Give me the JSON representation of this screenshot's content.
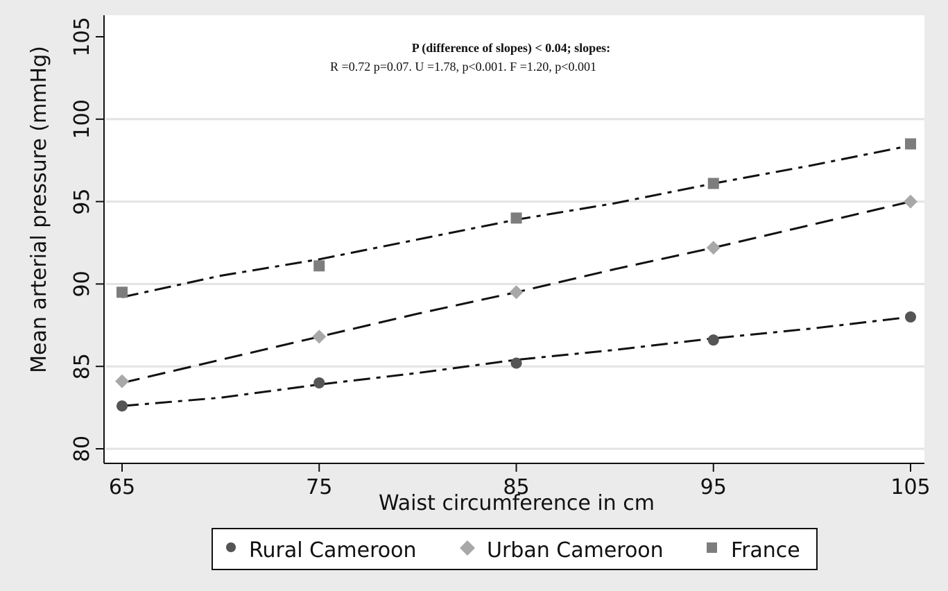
{
  "chart_data": {
    "type": "line",
    "xlabel": "Waist circumference in cm",
    "ylabel": "Mean arterial pressure (mmHg)",
    "xlim": [
      64,
      106
    ],
    "ylim": [
      79,
      105.5
    ],
    "x_ticks": [
      65,
      75,
      85,
      95,
      105
    ],
    "y_ticks": [
      80,
      85,
      90,
      95,
      100,
      105
    ],
    "grid": "horizontal",
    "legend_position": "bottom",
    "annotations": [
      "P (difference of slopes) < 0.04; slopes:",
      "R =0.72 p=0.07.  U =1.78, p<0.001.   F =1.20, p<0.001"
    ],
    "x": [
      65,
      75,
      85,
      95,
      105
    ],
    "series": [
      {
        "name": "Rural Cameroon",
        "marker": "circle",
        "color": "#555555",
        "line_style": "dash-dot",
        "values": [
          82.6,
          84.0,
          85.2,
          86.6,
          88.0
        ],
        "fit": [
          [
            65,
            82.6
          ],
          [
            70,
            83.1
          ],
          [
            75,
            83.9
          ],
          [
            80,
            84.6
          ],
          [
            85,
            85.4
          ],
          [
            90,
            86.0
          ],
          [
            95,
            86.7
          ],
          [
            100,
            87.3
          ],
          [
            105,
            88.0
          ]
        ]
      },
      {
        "name": "Urban Cameroon",
        "marker": "diamond",
        "color": "#a8a8a8",
        "line_style": "long-dash",
        "values": [
          84.1,
          86.8,
          89.5,
          92.2,
          95.0
        ],
        "fit": [
          [
            65,
            84.0
          ],
          [
            70,
            85.4
          ],
          [
            75,
            86.8
          ],
          [
            80,
            88.2
          ],
          [
            85,
            89.5
          ],
          [
            90,
            90.9
          ],
          [
            95,
            92.2
          ],
          [
            100,
            93.6
          ],
          [
            105,
            95.0
          ]
        ]
      },
      {
        "name": "France",
        "marker": "square",
        "color": "#7d7d7d",
        "line_style": "dash-dot",
        "values": [
          89.5,
          91.1,
          94.0,
          96.1,
          98.5
        ],
        "fit": [
          [
            65,
            89.2
          ],
          [
            70,
            90.5
          ],
          [
            75,
            91.5
          ],
          [
            80,
            92.7
          ],
          [
            85,
            93.9
          ],
          [
            90,
            94.9
          ],
          [
            95,
            96.1
          ],
          [
            100,
            97.2
          ],
          [
            105,
            98.4
          ]
        ]
      }
    ]
  },
  "colors": {
    "panel_background": "#ebebeb",
    "plot_background": "#ffffff",
    "gridline": "#e3e3e3",
    "line": "#111111"
  }
}
